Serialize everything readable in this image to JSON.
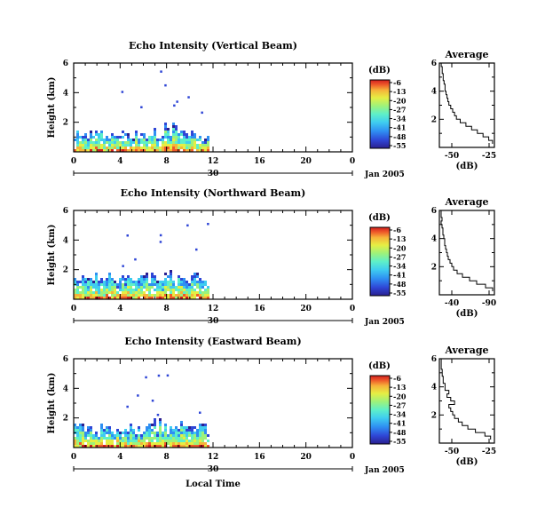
{
  "figure": {
    "local_time_label": "Local Time",
    "date_label": "Jan 2005",
    "colorbar_unit": "(dB)",
    "colorbar_ticks": [
      "-6",
      "-13",
      "-20",
      "-27",
      "-34",
      "-41",
      "-48",
      "-55"
    ],
    "colorbar_colors": [
      "#2a1f8f",
      "#2f46d6",
      "#2f8ff2",
      "#3fcdf0",
      "#5ef0c8",
      "#9ef27a",
      "#e6ee43",
      "#f6b43a",
      "#ee5a2a",
      "#d21f1f"
    ]
  },
  "chart_data": [
    {
      "type": "heatmap",
      "panel": "vertical",
      "title": "Echo Intensity (Vertical Beam)",
      "ylabel": "Height (km)",
      "xlim": [
        0,
        24
      ],
      "ylim": [
        0,
        6
      ],
      "x_ticks": [
        "0",
        "4",
        "8",
        "12",
        "16",
        "20",
        "0"
      ],
      "y_ticks": [
        "2",
        "4",
        "6"
      ],
      "day_label": "30",
      "data_extent_hours": [
        0,
        11.5
      ],
      "layer_top_km": 1.6,
      "colorbar_range_db": [
        -55,
        -6
      ],
      "profile": {
        "title": "Average",
        "xlabel": "(dB)",
        "x_ticks": [
          "-50",
          "-25"
        ],
        "xlim": [
          -52,
          -23
        ],
        "heights": [
          0.25,
          0.5,
          0.75,
          1.0,
          1.25,
          1.5,
          1.75,
          2.0,
          2.25,
          2.5,
          2.75,
          3.0,
          3.25,
          3.5,
          3.75,
          4.0,
          4.25,
          4.5,
          4.75,
          5.0,
          5.25,
          5.5,
          5.75
        ],
        "values": [
          -24,
          -26,
          -29,
          -32,
          -35,
          -38,
          -41,
          -43,
          -44,
          -45,
          -46,
          -47,
          -47.5,
          -48,
          -48.5,
          -49,
          -49,
          -49.5,
          -50,
          -50,
          -50.5,
          -50.5,
          -51
        ]
      }
    },
    {
      "type": "heatmap",
      "panel": "northward",
      "title": "Echo Intensity (Northward Beam)",
      "ylabel": "Height (km)",
      "xlim": [
        0,
        24
      ],
      "ylim": [
        0,
        6
      ],
      "x_ticks": [
        "0",
        "4",
        "8",
        "12",
        "16",
        "20",
        "0"
      ],
      "y_ticks": [
        "2",
        "4",
        "6"
      ],
      "day_label": "30",
      "data_extent_hours": [
        0,
        11.5
      ],
      "layer_top_km": 1.9,
      "colorbar_range_db": [
        -55,
        -6
      ],
      "profile": {
        "title": "Average",
        "xlabel": "(dB)",
        "x_ticks": [
          "-40",
          "-90"
        ],
        "xlim": [
          -48,
          -17
        ],
        "heights": [
          0.25,
          0.5,
          0.75,
          1.0,
          1.25,
          1.5,
          1.75,
          2.0,
          2.25,
          2.5,
          2.75,
          3.0,
          3.25,
          3.5,
          3.75,
          4.0,
          4.25,
          4.5,
          4.75,
          5.0,
          5.25,
          5.5,
          5.75
        ],
        "values": [
          -18,
          -22,
          -27,
          -31,
          -35,
          -38,
          -40,
          -41,
          -42,
          -43,
          -43.5,
          -44,
          -44.5,
          -45,
          -45,
          -45.5,
          -46,
          -46,
          -46.5,
          -47,
          -46.5,
          -47,
          -47
        ]
      }
    },
    {
      "type": "heatmap",
      "panel": "eastward",
      "title": "Echo Intensity (Eastward Beam)",
      "ylabel": "Height (km)",
      "xlim": [
        0,
        24
      ],
      "ylim": [
        0,
        6
      ],
      "x_ticks": [
        "0",
        "4",
        "8",
        "12",
        "16",
        "20",
        "0"
      ],
      "y_ticks": [
        "2",
        "4",
        "6"
      ],
      "day_label": "30",
      "data_extent_hours": [
        0,
        11.5
      ],
      "layer_top_km": 1.8,
      "colorbar_range_db": [
        -55,
        -6
      ],
      "profile": {
        "title": "Average",
        "xlabel": "(dB)",
        "x_ticks": [
          "-50",
          "-25"
        ],
        "xlim": [
          -52,
          -23
        ],
        "heights": [
          0.25,
          0.5,
          0.75,
          1.0,
          1.25,
          1.5,
          1.75,
          2.0,
          2.25,
          2.5,
          2.75,
          3.0,
          3.25,
          3.5,
          3.75,
          4.0,
          4.25,
          4.5,
          4.75,
          5.0,
          5.25,
          5.5,
          5.75
        ],
        "values": [
          -25,
          -28,
          -33,
          -37,
          -40,
          -42,
          -44,
          -45,
          -46,
          -47,
          -44,
          -46,
          -48,
          -47,
          -49,
          -49,
          -50,
          -50,
          -50.5,
          -50.5,
          -51,
          -51,
          -51
        ]
      }
    }
  ]
}
